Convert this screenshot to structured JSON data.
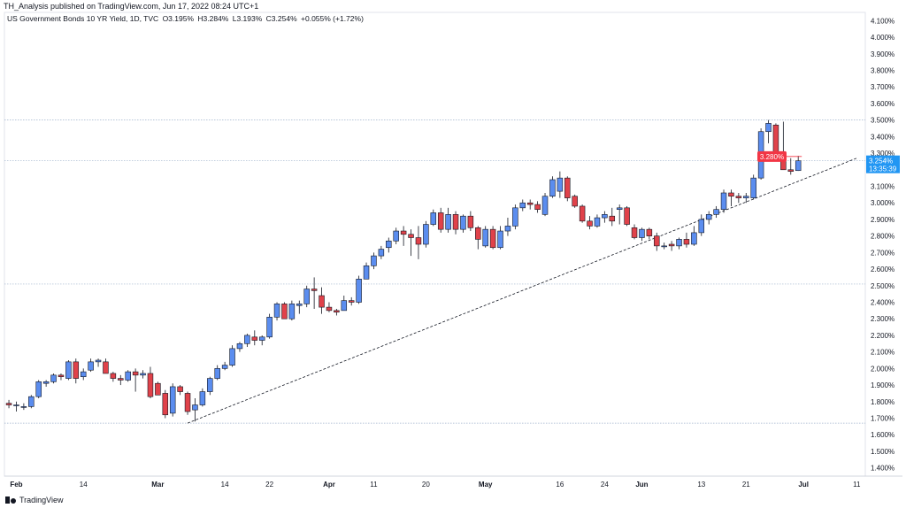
{
  "publisher": "TH_Analysis published on TradingView.com, Jun 17, 2022 08:24 UTC+1",
  "legend": {
    "symbol": "US Government Bonds 10 YR Yield, 1D, TVC",
    "open": "O3.195%",
    "high": "H3.284%",
    "low": "L3.193%",
    "close": "C3.254%",
    "change": "+0.055% (+1.72%)"
  },
  "brand": "TradingView",
  "colors": {
    "up": "#5b8def",
    "down": "#e0424a",
    "wick": "#131722",
    "price_label": "#2196f3",
    "alert_label": "#f23645",
    "trendline": "#131722"
  },
  "chart_data": {
    "type": "candlestick",
    "y_unit": "%",
    "ylim": [
      1.35,
      4.15
    ],
    "y_ticks": [
      "1.400%",
      "1.500%",
      "1.600%",
      "1.700%",
      "1.800%",
      "1.900%",
      "2.000%",
      "2.100%",
      "2.200%",
      "2.300%",
      "2.400%",
      "2.500%",
      "2.600%",
      "2.700%",
      "2.800%",
      "2.900%",
      "3.000%",
      "3.100%",
      "3.200%",
      "3.300%",
      "3.400%",
      "3.500%",
      "3.600%",
      "3.700%",
      "3.800%",
      "3.900%",
      "4.000%",
      "4.100%"
    ],
    "x_ticks": [
      {
        "label": "Feb",
        "date": "2022-02-01"
      },
      {
        "label": "14",
        "date": "2022-02-14"
      },
      {
        "label": "Mar",
        "date": "2022-03-01"
      },
      {
        "label": "14",
        "date": "2022-03-14"
      },
      {
        "label": "22",
        "date": "2022-03-22"
      },
      {
        "label": "Apr",
        "date": "2022-04-01"
      },
      {
        "label": "11",
        "date": "2022-04-11"
      },
      {
        "label": "20",
        "date": "2022-04-20"
      },
      {
        "label": "May",
        "date": "2022-05-02"
      },
      {
        "label": "16",
        "date": "2022-05-16"
      },
      {
        "label": "24",
        "date": "2022-05-24"
      },
      {
        "label": "Jun",
        "date": "2022-06-01"
      },
      {
        "label": "13",
        "date": "2022-06-13"
      },
      {
        "label": "21",
        "date": "2022-06-21"
      },
      {
        "label": "Jul",
        "date": "2022-07-01"
      },
      {
        "label": "11",
        "date": "2022-07-11"
      }
    ],
    "last_price": {
      "value": 3.254,
      "label": "3.254%",
      "countdown": "13:35:39"
    },
    "alert": {
      "value": 3.28,
      "label": "3.280%"
    },
    "horizontal_lines": [
      3.5,
      3.254,
      2.51,
      1.67
    ],
    "trendline": [
      {
        "date": "2022-03-07",
        "value": 1.67
      },
      {
        "date": "2022-07-11",
        "value": 3.27
      }
    ],
    "candles": [
      [
        "2022-01-31",
        1.79,
        1.81,
        1.76,
        1.78
      ],
      [
        "2022-02-01",
        1.78,
        1.8,
        1.74,
        1.78
      ],
      [
        "2022-02-02",
        1.77,
        1.79,
        1.75,
        1.77
      ],
      [
        "2022-02-03",
        1.77,
        1.84,
        1.76,
        1.83
      ],
      [
        "2022-02-04",
        1.83,
        1.93,
        1.82,
        1.92
      ],
      [
        "2022-02-07",
        1.91,
        1.93,
        1.89,
        1.92
      ],
      [
        "2022-02-08",
        1.92,
        1.97,
        1.91,
        1.96
      ],
      [
        "2022-02-09",
        1.96,
        1.97,
        1.93,
        1.95
      ],
      [
        "2022-02-10",
        1.94,
        2.05,
        1.93,
        2.04
      ],
      [
        "2022-02-11",
        2.04,
        2.06,
        1.91,
        1.94
      ],
      [
        "2022-02-14",
        1.95,
        2.0,
        1.93,
        1.98
      ],
      [
        "2022-02-15",
        1.99,
        2.06,
        1.98,
        2.04
      ],
      [
        "2022-02-16",
        2.04,
        2.06,
        2.01,
        2.05
      ],
      [
        "2022-02-17",
        2.04,
        2.06,
        1.97,
        1.97
      ],
      [
        "2022-02-18",
        1.97,
        1.98,
        1.92,
        1.94
      ],
      [
        "2022-02-22",
        1.94,
        1.96,
        1.9,
        1.93
      ],
      [
        "2022-02-23",
        1.93,
        1.99,
        1.92,
        1.98
      ],
      [
        "2022-02-24",
        1.98,
        2.0,
        1.86,
        1.96
      ],
      [
        "2022-02-25",
        1.96,
        1.99,
        1.94,
        1.97
      ],
      [
        "2022-02-28",
        1.97,
        2.01,
        1.82,
        1.83
      ],
      [
        "2022-03-01",
        1.91,
        1.92,
        1.84,
        1.84
      ],
      [
        "2022-03-02",
        1.85,
        1.87,
        1.7,
        1.72
      ],
      [
        "2022-03-03",
        1.73,
        1.91,
        1.71,
        1.89
      ],
      [
        "2022-03-04",
        1.89,
        1.9,
        1.84,
        1.86
      ],
      [
        "2022-03-07",
        1.85,
        1.86,
        1.72,
        1.74
      ],
      [
        "2022-03-08",
        1.75,
        1.82,
        1.68,
        1.78
      ],
      [
        "2022-03-09",
        1.78,
        1.88,
        1.77,
        1.86
      ],
      [
        "2022-03-10",
        1.86,
        1.95,
        1.84,
        1.94
      ],
      [
        "2022-03-11",
        1.94,
        2.02,
        1.93,
        2.0
      ],
      [
        "2022-03-14",
        2.0,
        2.04,
        1.99,
        2.02
      ],
      [
        "2022-03-15",
        2.02,
        2.14,
        2.01,
        2.12
      ],
      [
        "2022-03-16",
        2.12,
        2.16,
        2.1,
        2.15
      ],
      [
        "2022-03-17",
        2.15,
        2.21,
        2.13,
        2.2
      ],
      [
        "2022-03-18",
        2.19,
        2.23,
        2.14,
        2.17
      ],
      [
        "2022-03-21",
        2.17,
        2.2,
        2.14,
        2.19
      ],
      [
        "2022-03-22",
        2.19,
        2.33,
        2.18,
        2.31
      ],
      [
        "2022-03-23",
        2.31,
        2.4,
        2.29,
        2.39
      ],
      [
        "2022-03-24",
        2.39,
        2.4,
        2.3,
        2.3
      ],
      [
        "2022-03-25",
        2.3,
        2.41,
        2.29,
        2.39
      ],
      [
        "2022-03-28",
        2.38,
        2.41,
        2.33,
        2.39
      ],
      [
        "2022-03-29",
        2.39,
        2.5,
        2.37,
        2.48
      ],
      [
        "2022-03-30",
        2.48,
        2.55,
        2.36,
        2.47
      ],
      [
        "2022-03-31",
        2.44,
        2.49,
        2.33,
        2.37
      ],
      [
        "2022-04-01",
        2.37,
        2.4,
        2.34,
        2.35
      ],
      [
        "2022-04-04",
        2.35,
        2.36,
        2.32,
        2.34
      ],
      [
        "2022-04-05",
        2.35,
        2.44,
        2.35,
        2.41
      ],
      [
        "2022-04-06",
        2.41,
        2.43,
        2.38,
        2.4
      ],
      [
        "2022-04-07",
        2.4,
        2.56,
        2.39,
        2.54
      ],
      [
        "2022-04-08",
        2.54,
        2.64,
        2.54,
        2.62
      ],
      [
        "2022-04-11",
        2.62,
        2.7,
        2.6,
        2.68
      ],
      [
        "2022-04-12",
        2.68,
        2.74,
        2.66,
        2.72
      ],
      [
        "2022-04-13",
        2.73,
        2.79,
        2.7,
        2.77
      ],
      [
        "2022-04-14",
        2.77,
        2.85,
        2.75,
        2.83
      ],
      [
        "2022-04-15",
        2.83,
        2.86,
        2.74,
        2.81
      ],
      [
        "2022-04-18",
        2.81,
        2.84,
        2.68,
        2.79
      ],
      [
        "2022-04-19",
        2.79,
        2.86,
        2.66,
        2.75
      ],
      [
        "2022-04-20",
        2.75,
        2.89,
        2.73,
        2.87
      ],
      [
        "2022-04-21",
        2.87,
        2.96,
        2.86,
        2.94
      ],
      [
        "2022-04-22",
        2.94,
        2.97,
        2.82,
        2.84
      ],
      [
        "2022-04-25",
        2.84,
        2.97,
        2.82,
        2.93
      ],
      [
        "2022-04-26",
        2.93,
        2.95,
        2.81,
        2.84
      ],
      [
        "2022-04-27",
        2.84,
        2.93,
        2.82,
        2.92
      ],
      [
        "2022-04-28",
        2.92,
        2.95,
        2.83,
        2.85
      ],
      [
        "2022-04-29",
        2.85,
        2.86,
        2.72,
        2.78
      ],
      [
        "2022-05-02",
        2.74,
        2.86,
        2.73,
        2.84
      ],
      [
        "2022-05-03",
        2.84,
        2.86,
        2.72,
        2.73
      ],
      [
        "2022-05-04",
        2.73,
        2.86,
        2.72,
        2.83
      ],
      [
        "2022-05-05",
        2.83,
        2.91,
        2.8,
        2.86
      ],
      [
        "2022-05-06",
        2.86,
        2.99,
        2.84,
        2.97
      ],
      [
        "2022-05-09",
        2.97,
        3.02,
        2.95,
        3.0
      ],
      [
        "2022-05-10",
        3.0,
        3.02,
        2.96,
        2.99
      ],
      [
        "2022-05-11",
        2.99,
        3.01,
        2.94,
        2.96
      ],
      [
        "2022-05-12",
        2.93,
        3.06,
        2.92,
        3.04
      ],
      [
        "2022-05-13",
        3.04,
        3.16,
        3.03,
        3.14
      ],
      [
        "2022-05-16",
        3.07,
        3.19,
        3.03,
        3.15
      ],
      [
        "2022-05-17",
        3.15,
        3.16,
        3.01,
        3.03
      ],
      [
        "2022-05-18",
        3.04,
        3.05,
        2.97,
        2.98
      ],
      [
        "2022-05-19",
        2.98,
        2.99,
        2.88,
        2.89
      ],
      [
        "2022-05-20",
        2.89,
        2.92,
        2.84,
        2.86
      ],
      [
        "2022-05-23",
        2.86,
        2.93,
        2.85,
        2.91
      ],
      [
        "2022-05-24",
        2.91,
        2.95,
        2.88,
        2.93
      ],
      [
        "2022-05-25",
        2.92,
        2.97,
        2.86,
        2.89
      ],
      [
        "2022-05-26",
        2.96,
        2.99,
        2.87,
        2.97
      ],
      [
        "2022-05-27",
        2.97,
        2.98,
        2.86,
        2.87
      ],
      [
        "2022-05-31",
        2.85,
        2.87,
        2.78,
        2.79
      ],
      [
        "2022-06-01",
        2.79,
        2.85,
        2.77,
        2.84
      ],
      [
        "2022-06-02",
        2.84,
        2.85,
        2.78,
        2.8
      ],
      [
        "2022-06-03",
        2.8,
        2.82,
        2.71,
        2.74
      ],
      [
        "2022-06-06",
        2.74,
        2.76,
        2.72,
        2.74
      ],
      [
        "2022-06-07",
        2.75,
        2.77,
        2.71,
        2.74
      ],
      [
        "2022-06-08",
        2.74,
        2.79,
        2.72,
        2.78
      ],
      [
        "2022-06-09",
        2.78,
        2.82,
        2.73,
        2.75
      ],
      [
        "2022-06-10",
        2.75,
        2.86,
        2.74,
        2.82
      ],
      [
        "2022-06-13",
        2.82,
        2.93,
        2.8,
        2.9
      ],
      [
        "2022-06-14",
        2.9,
        2.95,
        2.87,
        2.93
      ],
      [
        "2022-06-15",
        2.93,
        2.98,
        2.91,
        2.96
      ],
      [
        "2022-06-16",
        2.96,
        3.08,
        2.94,
        3.06
      ],
      [
        "2022-06-17",
        3.06,
        3.08,
        2.98,
        3.04
      ],
      [
        "2022-06-20",
        3.04,
        3.06,
        3.0,
        3.03
      ],
      [
        "2022-06-21",
        3.03,
        3.06,
        3.0,
        3.04
      ],
      [
        "2022-06-22",
        3.03,
        3.17,
        3.02,
        3.15
      ],
      [
        "2022-06-23",
        3.15,
        3.45,
        3.14,
        3.43
      ],
      [
        "2022-06-24",
        3.43,
        3.5,
        3.36,
        3.48
      ],
      [
        "2022-06-27",
        3.47,
        3.48,
        3.26,
        3.28
      ],
      [
        "2022-06-28",
        3.28,
        3.49,
        3.21,
        3.2
      ],
      [
        "2022-06-29",
        3.2,
        3.27,
        3.17,
        3.19
      ],
      [
        "2022-06-30",
        3.195,
        3.284,
        3.193,
        3.254
      ]
    ]
  }
}
